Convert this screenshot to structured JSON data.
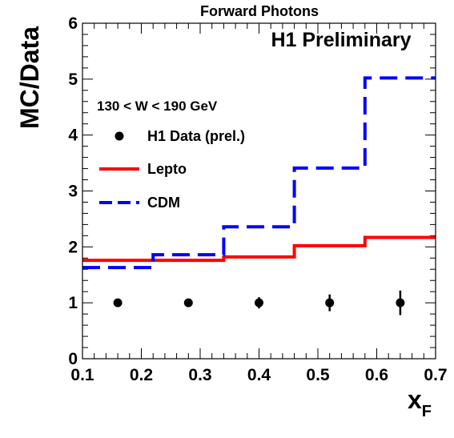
{
  "chart_data": {
    "type": "line",
    "title": "Forward Photons",
    "xlabel": "x",
    "xlabel_sub": "F",
    "ylabel": "MC/Data",
    "xlim": [
      0.1,
      0.7
    ],
    "ylim": [
      0,
      6
    ],
    "x_ticks": [
      "0.1",
      "0.2",
      "0.3",
      "0.4",
      "0.5",
      "0.6",
      "0.7"
    ],
    "y_ticks": [
      "0",
      "1",
      "2",
      "3",
      "4",
      "5",
      "6"
    ],
    "annotations": {
      "preliminary": "H1 Preliminary",
      "cut": "130 < W < 190 GeV"
    },
    "legend_position": "left",
    "bin_edges": [
      0.1,
      0.22,
      0.34,
      0.46,
      0.58,
      0.7
    ],
    "series": [
      {
        "name": "H1 Data (prel.)",
        "kind": "points",
        "color": "#000000",
        "x": [
          0.16,
          0.28,
          0.4,
          0.52,
          0.64
        ],
        "y": [
          1.0,
          1.0,
          1.0,
          1.0,
          1.0
        ],
        "err": [
          0.04,
          0.07,
          0.1,
          0.15,
          0.22
        ]
      },
      {
        "name": "Lepto",
        "kind": "histogram",
        "color": "#ff0000",
        "style": "solid",
        "values": [
          1.76,
          1.76,
          1.82,
          2.02,
          2.17
        ]
      },
      {
        "name": "CDM",
        "kind": "histogram",
        "color": "#0000ff",
        "style": "dashed",
        "values": [
          1.63,
          1.86,
          2.36,
          3.41,
          5.02
        ]
      }
    ]
  }
}
